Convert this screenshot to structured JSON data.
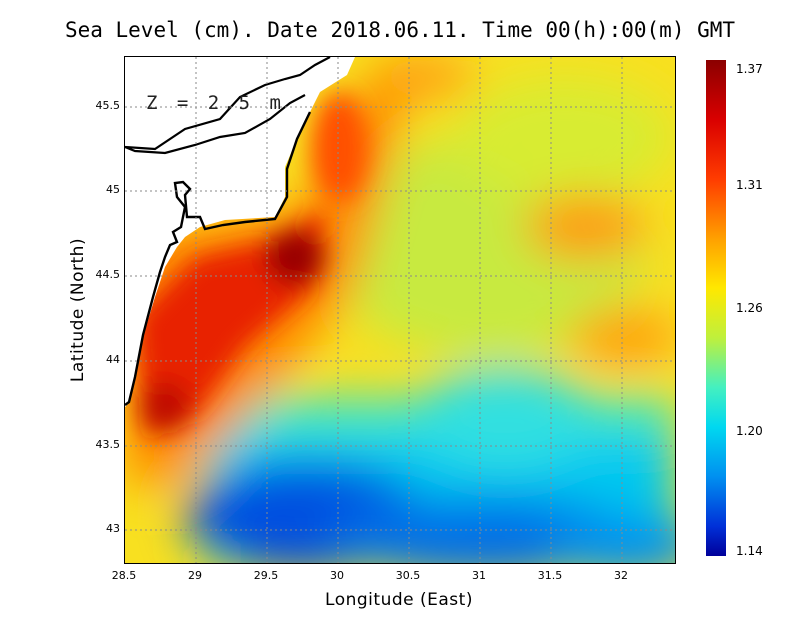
{
  "title": "Sea Level (cm). Date 2018.06.11. Time 00(h):00(m) GMT",
  "depth_label": "Z = 2.5 m",
  "axes": {
    "xlabel": "Longitude (East)",
    "ylabel": "Latitude (North)",
    "xticks": [
      "28.5",
      "29",
      "29.5",
      "30",
      "30.5",
      "31",
      "31.5",
      "32"
    ],
    "yticks": [
      "45.5",
      "45",
      "44.5",
      "44",
      "43.5",
      "43"
    ]
  },
  "colorbar": {
    "labels": [
      "1.37",
      "1.31",
      "1.26",
      "1.20",
      "1.14"
    ],
    "colors": [
      "#8b0000",
      "#ff3c00",
      "#ffe800",
      "#00d8f0",
      "#00009a"
    ]
  },
  "chart_data": {
    "type": "heatmap",
    "variable": "Sea Level (cm)",
    "xlim": [
      28.5,
      32.4
    ],
    "ylim": [
      42.8,
      45.8
    ],
    "value_range": [
      1.14,
      1.37
    ],
    "x_values": [
      28.5,
      29,
      29.5,
      30,
      30.5,
      31,
      31.5,
      32
    ],
    "y_values": [
      45.5,
      45,
      44.5,
      44,
      43.5,
      43
    ]
  }
}
